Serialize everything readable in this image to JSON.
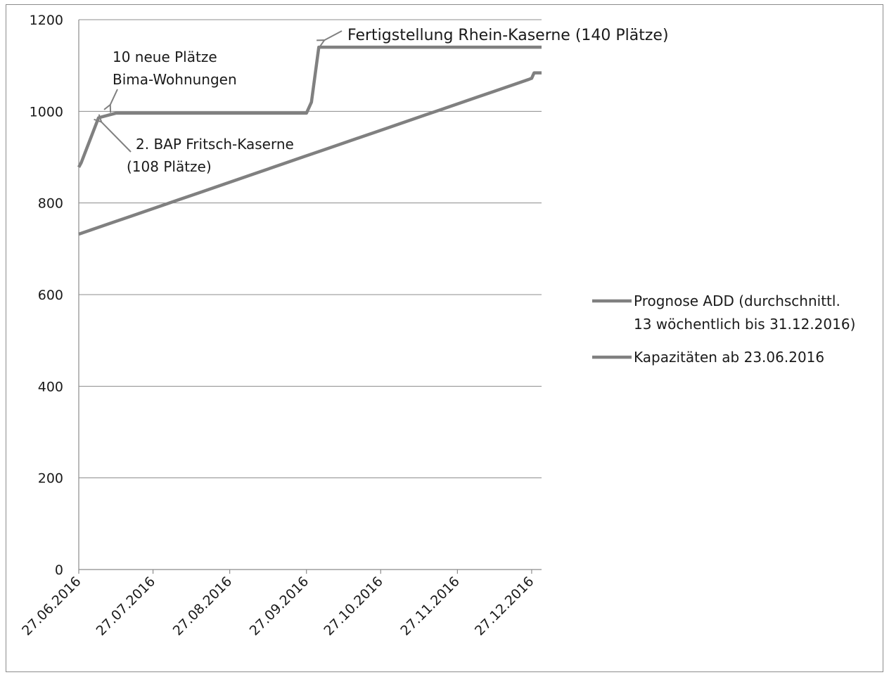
{
  "chart_data": {
    "type": "line",
    "title": "",
    "xlabel": "",
    "ylabel": "",
    "ylim": [
      0,
      1200
    ],
    "yticks": [
      "0",
      "200",
      "400",
      "600",
      "800",
      "1000",
      "1200"
    ],
    "xlim": [
      "2016-06-27",
      "2016-12-31"
    ],
    "xticks": [
      "27.06.2016",
      "27.07.2016",
      "27.08.2016",
      "27.09.2016",
      "27.10.2016",
      "27.11.2016",
      "27.12.2016"
    ],
    "grid": "horizontal",
    "legend_position": "right",
    "line_color": "#808080",
    "series": [
      {
        "name": "Prognose ADD (durchschnittl. 13 wöchentlich bis 31.12.2016)",
        "points": [
          [
            "2016-06-27",
            732
          ],
          [
            "2016-07-04",
            745
          ],
          [
            "2016-07-11",
            758
          ],
          [
            "2016-07-18",
            771
          ],
          [
            "2016-07-25",
            784
          ],
          [
            "2016-08-01",
            797
          ],
          [
            "2016-08-08",
            810
          ],
          [
            "2016-08-15",
            823
          ],
          [
            "2016-08-22",
            836
          ],
          [
            "2016-08-29",
            849
          ],
          [
            "2016-09-05",
            862
          ],
          [
            "2016-09-12",
            875
          ],
          [
            "2016-09-19",
            888
          ],
          [
            "2016-09-26",
            901
          ],
          [
            "2016-10-03",
            914
          ],
          [
            "2016-10-10",
            927
          ],
          [
            "2016-10-17",
            940
          ],
          [
            "2016-10-24",
            953
          ],
          [
            "2016-10-31",
            966
          ],
          [
            "2016-11-07",
            979
          ],
          [
            "2016-11-14",
            992
          ],
          [
            "2016-11-21",
            1005
          ],
          [
            "2016-11-28",
            1018
          ],
          [
            "2016-12-05",
            1031
          ],
          [
            "2016-12-12",
            1044
          ],
          [
            "2016-12-19",
            1057
          ],
          [
            "2016-12-26",
            1070
          ],
          [
            "2016-12-27",
            1072
          ],
          [
            "2016-12-28",
            1084
          ],
          [
            "2016-12-31",
            1084
          ]
        ]
      },
      {
        "name": "Kapazitäten ab 23.06.2016",
        "points": [
          [
            "2016-06-27",
            878
          ],
          [
            "2016-06-28",
            888
          ],
          [
            "2016-07-05",
            986
          ],
          [
            "2016-07-12",
            996
          ],
          [
            "2016-09-27",
            996
          ],
          [
            "2016-09-29",
            1020
          ],
          [
            "2016-10-02",
            1140
          ],
          [
            "2016-12-31",
            1140
          ]
        ]
      }
    ],
    "annotations": [
      {
        "text": "10 neue Plätze",
        "text2": "Bima-Wohnungen",
        "at": [
          "2016-07-12",
          996
        ]
      },
      {
        "text": "2. BAP Fritsch-Kaserne",
        "text2": "(108 Plätze)",
        "at": [
          "2016-07-05",
          986
        ]
      },
      {
        "text": "Fertigstellung Rhein-Kaserne (140 Plätze)",
        "at": [
          "2016-10-02",
          1140
        ]
      }
    ]
  }
}
